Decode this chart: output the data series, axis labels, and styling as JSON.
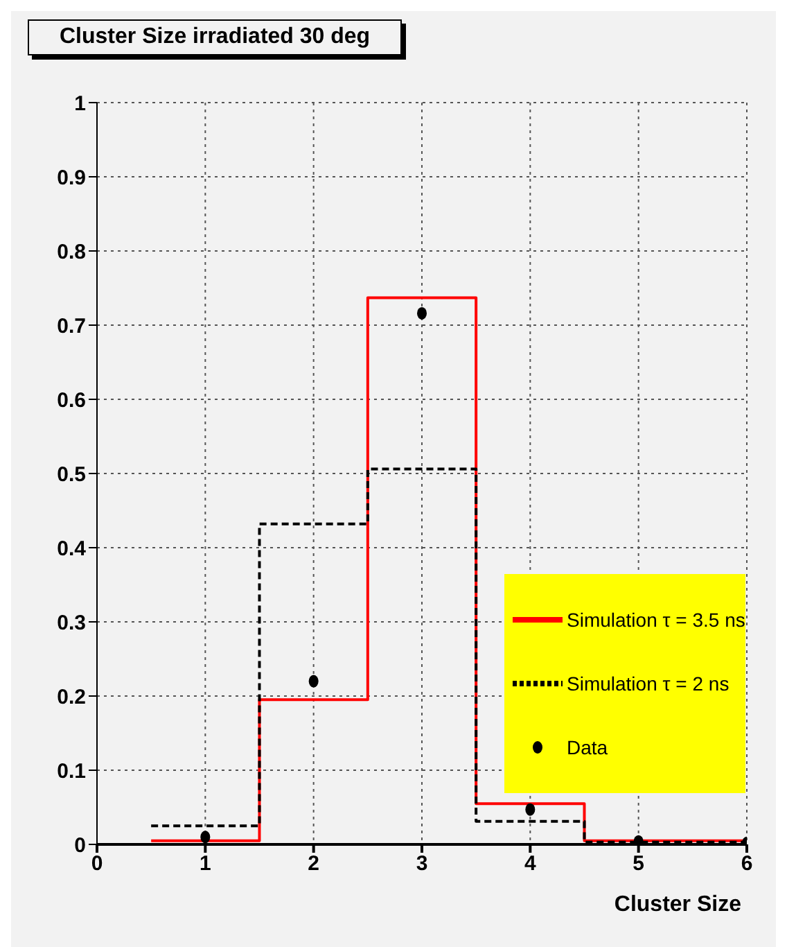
{
  "chart_data": {
    "type": "step",
    "title": "Cluster Size irradiated 30 deg",
    "xlabel": "Cluster Size",
    "xlim": [
      0,
      6
    ],
    "xticks": [
      0,
      1,
      2,
      3,
      4,
      5,
      6
    ],
    "ylim": [
      0,
      1
    ],
    "yticks": [
      0,
      0.1,
      0.2,
      0.3,
      0.4,
      0.5,
      0.6,
      0.7,
      0.8,
      0.9,
      1
    ],
    "grid": true,
    "legend": "right",
    "series": [
      {
        "name": "Simulation τ = 3.5 ns",
        "color": "#ff0000",
        "line_style": "solid",
        "x": [
          0.5,
          1.5,
          2.5,
          3.5,
          4.5,
          5.5,
          6
        ],
        "values": [
          0.005,
          0.195,
          0.737,
          0.055,
          0.005,
          0.005,
          0.005
        ]
      },
      {
        "name": "Simulation τ = 2 ns",
        "color": "#000000",
        "line_style": "dashed",
        "x": [
          0.5,
          1.5,
          2.5,
          3.5,
          4.5,
          5.5,
          6
        ],
        "values": [
          0.025,
          0.432,
          0.506,
          0.031,
          0.003,
          0.003,
          0.003
        ]
      },
      {
        "name": "Data",
        "type": "scatter",
        "color": "#000000",
        "marker": "circle",
        "x": [
          1,
          2,
          3,
          4,
          5,
          6
        ],
        "values": [
          0.01,
          0.22,
          0.716,
          0.047,
          0.004,
          0.002
        ]
      }
    ]
  }
}
